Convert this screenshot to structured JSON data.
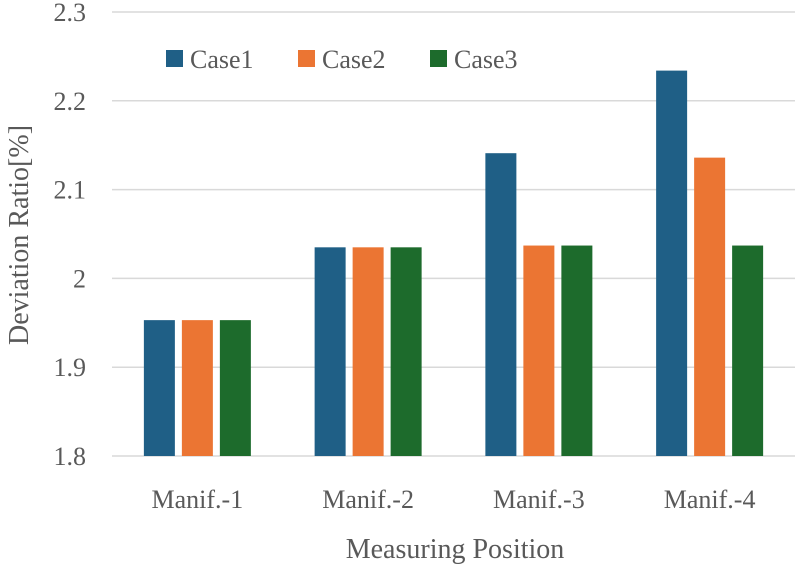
{
  "chart_data": {
    "type": "bar",
    "title": "",
    "xlabel": "Measuring Position",
    "ylabel": "Deviation Ratio[%]",
    "ylim": [
      1.8,
      2.3
    ],
    "yticks": [
      "1.8",
      "1.9",
      "2",
      "2.1",
      "2.2",
      "2.3"
    ],
    "grid": true,
    "legend_position": "top-left",
    "categories": [
      "Manif.-1",
      "Manif.-2",
      "Manif.-3",
      "Manif.-4"
    ],
    "series": [
      {
        "name": "Case1",
        "color": "#1f5f86",
        "values": [
          1.953,
          2.035,
          2.141,
          2.234
        ]
      },
      {
        "name": "Case2",
        "color": "#eb7533",
        "values": [
          1.953,
          2.035,
          2.037,
          2.136
        ]
      },
      {
        "name": "Case3",
        "color": "#1d6b2c",
        "values": [
          1.953,
          2.035,
          2.037,
          2.037
        ]
      }
    ]
  }
}
